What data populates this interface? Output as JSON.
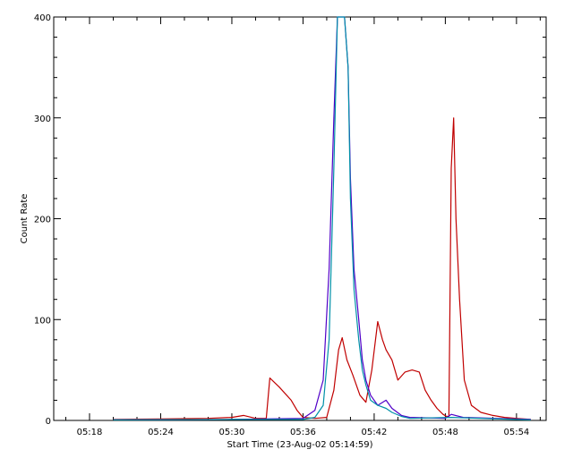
{
  "chart_data": {
    "type": "line",
    "title": "",
    "xlabel": "Start Time (23-Aug-02 05:14:59)",
    "ylabel": "Count Rate",
    "xlim_minutes": [
      14.98,
      56.5
    ],
    "ylim": [
      0,
      400
    ],
    "xticks": [
      {
        "minute": 18,
        "label": "05:18"
      },
      {
        "minute": 24,
        "label": "05:24"
      },
      {
        "minute": 30,
        "label": "05:30"
      },
      {
        "minute": 36,
        "label": "05:36"
      },
      {
        "minute": 42,
        "label": "05:42"
      },
      {
        "minute": 48,
        "label": "05:48"
      },
      {
        "minute": 54,
        "label": "05:54"
      }
    ],
    "yticks": [
      {
        "value": 0,
        "label": "0"
      },
      {
        "value": 100,
        "label": "100"
      },
      {
        "value": 200,
        "label": "200"
      },
      {
        "value": 300,
        "label": "300"
      },
      {
        "value": 400,
        "label": "400"
      }
    ],
    "grid": false,
    "series": [
      {
        "color": "#c00000",
        "points": [
          [
            20,
            1
          ],
          [
            24,
            1.5
          ],
          [
            28,
            2
          ],
          [
            30,
            3
          ],
          [
            31,
            5
          ],
          [
            32,
            2
          ],
          [
            32.9,
            2
          ],
          [
            33.2,
            42
          ],
          [
            34,
            33
          ],
          [
            35,
            20
          ],
          [
            35.5,
            10
          ],
          [
            36,
            3
          ],
          [
            37,
            2
          ],
          [
            38,
            3
          ],
          [
            38.6,
            30
          ],
          [
            39,
            70
          ],
          [
            39.3,
            82
          ],
          [
            39.7,
            60
          ],
          [
            40.2,
            45
          ],
          [
            40.8,
            25
          ],
          [
            41.3,
            18
          ],
          [
            41.8,
            50
          ],
          [
            42.3,
            98
          ],
          [
            42.7,
            80
          ],
          [
            43,
            70
          ],
          [
            43.5,
            60
          ],
          [
            44,
            40
          ],
          [
            44.6,
            48
          ],
          [
            45.2,
            50
          ],
          [
            45.8,
            48
          ],
          [
            46.3,
            30
          ],
          [
            46.8,
            20
          ],
          [
            47.3,
            12
          ],
          [
            47.8,
            6
          ],
          [
            48.1,
            4
          ],
          [
            48.3,
            4
          ],
          [
            48.5,
            250
          ],
          [
            48.7,
            300
          ],
          [
            48.9,
            200
          ],
          [
            49.2,
            120
          ],
          [
            49.6,
            40
          ],
          [
            50.2,
            15
          ],
          [
            51,
            8
          ],
          [
            52,
            5
          ],
          [
            53,
            3
          ],
          [
            54,
            2
          ],
          [
            55.2,
            1
          ]
        ]
      },
      {
        "color": "#5000c8",
        "points": [
          [
            20,
            0.5
          ],
          [
            30,
            1
          ],
          [
            36,
            2
          ],
          [
            37,
            10
          ],
          [
            37.7,
            40
          ],
          [
            38.2,
            150
          ],
          [
            38.6,
            300
          ],
          [
            38.9,
            400
          ],
          [
            39.5,
            400
          ],
          [
            39.8,
            350
          ],
          [
            40,
            240
          ],
          [
            40.3,
            150
          ],
          [
            40.7,
            100
          ],
          [
            41,
            60
          ],
          [
            41.3,
            40
          ],
          [
            41.7,
            25
          ],
          [
            42.3,
            15
          ],
          [
            43,
            20
          ],
          [
            43.5,
            12
          ],
          [
            44.3,
            5
          ],
          [
            45,
            3
          ],
          [
            48,
            2
          ],
          [
            48.5,
            6
          ],
          [
            49.5,
            3
          ],
          [
            55.2,
            1
          ]
        ]
      },
      {
        "color": "#0090a8",
        "points": [
          [
            20,
            0.5
          ],
          [
            30,
            1
          ],
          [
            36,
            1
          ],
          [
            37,
            3
          ],
          [
            37.7,
            15
          ],
          [
            38.2,
            80
          ],
          [
            38.6,
            250
          ],
          [
            38.9,
            400
          ],
          [
            39.5,
            400
          ],
          [
            39.8,
            350
          ],
          [
            40,
            220
          ],
          [
            40.3,
            130
          ],
          [
            40.7,
            80
          ],
          [
            41,
            50
          ],
          [
            41.3,
            35
          ],
          [
            41.7,
            20
          ],
          [
            42.3,
            15
          ],
          [
            43,
            12
          ],
          [
            43.5,
            8
          ],
          [
            44.3,
            4
          ],
          [
            45,
            2
          ],
          [
            48.5,
            3
          ],
          [
            55.2,
            0.5
          ]
        ]
      }
    ]
  }
}
